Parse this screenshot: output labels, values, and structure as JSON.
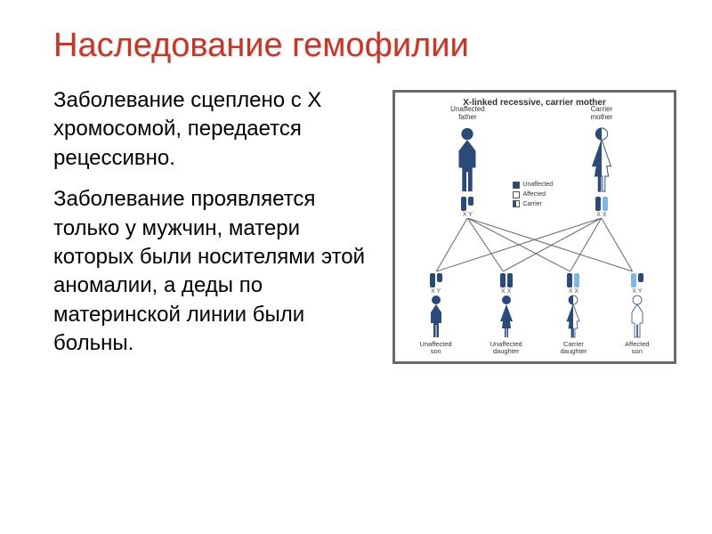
{
  "slide": {
    "title": "Наследование гемофилии",
    "para1": "Заболевание сцеплено с Х хромосомой, передается рецессивно.",
    "para2": "Заболевание проявляется только у мужчин, матери которых были носителями этой аномалии, а деды по материнской линии были больны."
  },
  "figure": {
    "title": "X-linked recessive, carrier mother",
    "colors": {
      "unaffected": "#2b4a78",
      "affected": "#ffffff",
      "carrier_half": "#2b4a78",
      "x_unaffected": "#2b4a78",
      "x_affected": "#7fb5e6",
      "outline": "#1a2a44"
    },
    "parents": {
      "father": {
        "label": "Unaffected\nfather",
        "xy": "X Y"
      },
      "mother": {
        "label": "Carrier\nmother",
        "xy": "X X"
      }
    },
    "legend": {
      "unaffected": "Unaffected",
      "affected": "Affected",
      "carrier": "Carrier"
    },
    "children": [
      {
        "label": "Unaffected\nson",
        "type": "male",
        "status": "unaffected",
        "xy": "X Y"
      },
      {
        "label": "Unaffected\ndaughter",
        "type": "female",
        "status": "unaffected",
        "xy": "X X"
      },
      {
        "label": "Carrier\ndaughter",
        "type": "female",
        "status": "carrier",
        "xy": "X X"
      },
      {
        "label": "Affected\nson",
        "type": "male",
        "status": "affected",
        "xy": "X Y"
      }
    ]
  }
}
